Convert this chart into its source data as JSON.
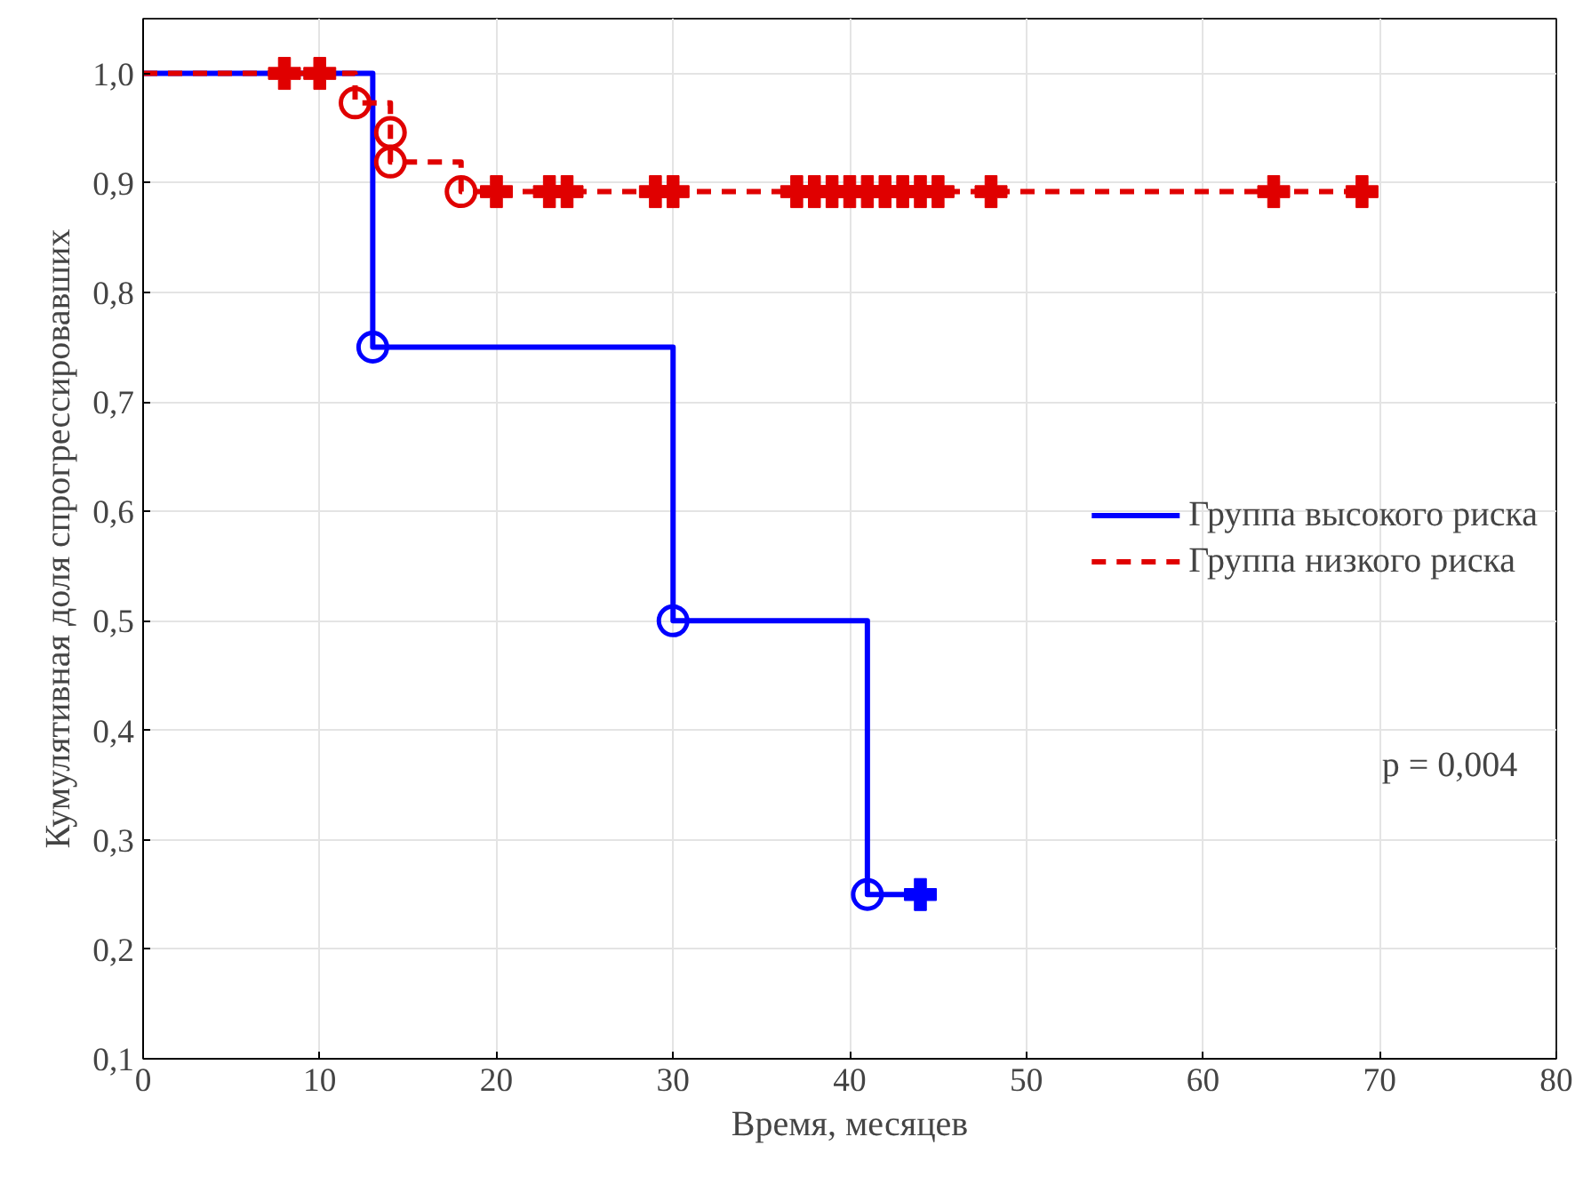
{
  "chart_data": {
    "type": "step",
    "xlabel": "Время, месяцев",
    "ylabel": "Кумулятивная доля спрогрессировавших",
    "xlim": [
      0,
      80
    ],
    "ylim": [
      0.1,
      1.05
    ],
    "xticks": [
      0,
      10,
      20,
      30,
      40,
      50,
      60,
      70,
      80
    ],
    "yticks": [
      {
        "value": 0.1,
        "label": "0,1"
      },
      {
        "value": 0.2,
        "label": "0,2"
      },
      {
        "value": 0.3,
        "label": "0,3"
      },
      {
        "value": 0.4,
        "label": "0,4"
      },
      {
        "value": 0.5,
        "label": "0,5"
      },
      {
        "value": 0.6,
        "label": "0,6"
      },
      {
        "value": 0.7,
        "label": "0,7"
      },
      {
        "value": 0.8,
        "label": "0,8"
      },
      {
        "value": 0.9,
        "label": "0,9"
      },
      {
        "value": 1.0,
        "label": "1,0"
      }
    ],
    "grid": true,
    "legend": "right",
    "annotations": [
      "p = 0,004"
    ],
    "series": [
      {
        "name": "Группа высокого риска",
        "color": "#0000ff",
        "line_style": "solid",
        "marker": "none",
        "x": [
          0,
          13,
          30,
          41,
          44
        ],
        "values": [
          1.0,
          0.75,
          0.5,
          0.25,
          0.25
        ]
      },
      {
        "name": "Группа низкого риска",
        "color": "#e00000",
        "line_style": "dashed",
        "marker": "none",
        "x": [
          0,
          12,
          14,
          14,
          18,
          69
        ],
        "values": [
          1.0,
          0.973,
          0.946,
          0.919,
          0.892,
          0.892
        ]
      },
      {
        "type": "scatter",
        "color": "#0000ff",
        "marker": "circle",
        "x": [
          13,
          30,
          41
        ],
        "values": [
          0.75,
          0.5,
          0.25
        ]
      },
      {
        "type": "scatter",
        "color": "#0000ff",
        "marker": "cross",
        "x": [
          44
        ],
        "values": [
          0.25
        ]
      },
      {
        "type": "scatter",
        "color": "#e00000",
        "marker": "circle",
        "x": [
          12,
          14,
          14,
          18
        ],
        "values": [
          0.973,
          0.946,
          0.919,
          0.892
        ]
      },
      {
        "type": "scatter",
        "color": "#e00000",
        "marker": "cross",
        "x": [
          8,
          10,
          20,
          23,
          24,
          29,
          30,
          37,
          38,
          39,
          40,
          41,
          42,
          43,
          44,
          45,
          48,
          64,
          69
        ],
        "values": [
          1.0,
          1.0,
          0.892,
          0.892,
          0.892,
          0.892,
          0.892,
          0.892,
          0.892,
          0.892,
          0.892,
          0.892,
          0.892,
          0.892,
          0.892,
          0.892,
          0.892,
          0.892,
          0.892
        ]
      }
    ]
  }
}
